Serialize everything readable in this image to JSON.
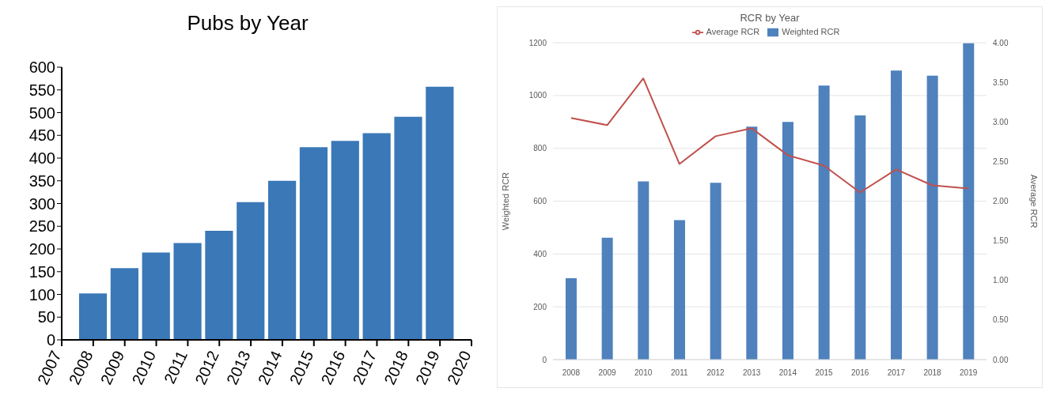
{
  "chart_data": [
    {
      "type": "bar",
      "title": "Pubs by Year",
      "x": [
        2008,
        2009,
        2010,
        2011,
        2012,
        2013,
        2014,
        2015,
        2016,
        2017,
        2018,
        2019
      ],
      "values": [
        102,
        158,
        192,
        213,
        240,
        303,
        350,
        424,
        438,
        455,
        491,
        557
      ],
      "color": "#3a78b8",
      "xlim": [
        2007,
        2020
      ],
      "xticks": [
        2007,
        2008,
        2009,
        2010,
        2011,
        2012,
        2013,
        2014,
        2015,
        2016,
        2017,
        2018,
        2019,
        2020
      ],
      "ylim": [
        0,
        600
      ],
      "yticks": [
        0,
        50,
        100,
        150,
        200,
        250,
        300,
        350,
        400,
        450,
        500,
        550,
        600
      ],
      "grid": false,
      "legend": false
    },
    {
      "type": "bar",
      "title": "RCR by Year",
      "ylabel": "Weighted RCR",
      "y2label": "Average RCR",
      "categories": [
        "2008",
        "2009",
        "2010",
        "2011",
        "2012",
        "2013",
        "2014",
        "2015",
        "2016",
        "2017",
        "2018",
        "2019"
      ],
      "series": [
        {
          "name": "Weighted RCR",
          "color": "#4f81bd",
          "values": [
            308,
            462,
            675,
            528,
            670,
            882,
            900,
            1038,
            925,
            1095,
            1075,
            1198
          ]
        },
        {
          "name": "Average RCR",
          "type": "line",
          "axis": "y2",
          "color": "#c0504d",
          "values": [
            3.05,
            2.96,
            3.55,
            2.47,
            2.82,
            2.92,
            2.58,
            2.45,
            2.11,
            2.4,
            2.2,
            2.16
          ]
        }
      ],
      "ylim": [
        0,
        1200
      ],
      "yticks": [
        0,
        200,
        400,
        600,
        800,
        1000,
        1200
      ],
      "y2lim": [
        0,
        4
      ],
      "y2ticks": [
        {
          "value": 0,
          "label": "0.00"
        },
        {
          "value": 0.5,
          "label": "0.50"
        },
        {
          "value": 1,
          "label": "1.00"
        },
        {
          "value": 1.5,
          "label": "1.50"
        },
        {
          "value": 2,
          "label": "2.00"
        },
        {
          "value": 2.5,
          "label": "2.50"
        },
        {
          "value": 3,
          "label": "3.00"
        },
        {
          "value": 3.5,
          "label": "3.50"
        },
        {
          "value": 4,
          "label": "4.00"
        }
      ],
      "grid": "y",
      "legend": "top",
      "line_style": "solid",
      "marker": "none"
    }
  ]
}
